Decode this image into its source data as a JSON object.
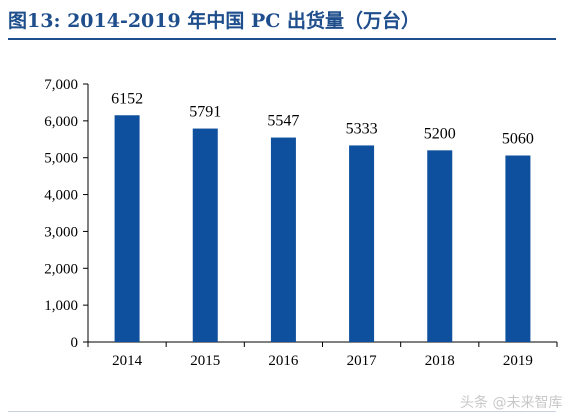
{
  "chart_data": {
    "type": "bar",
    "title": "图13: 2014-2019 年中国 PC 出货量（万台）",
    "categories": [
      "2014",
      "2015",
      "2016",
      "2017",
      "2018",
      "2019"
    ],
    "values": [
      6152,
      5791,
      5547,
      5333,
      5200,
      5060
    ],
    "data_labels": [
      "6152",
      "5791",
      "5547",
      "5333",
      "5200",
      "5060"
    ],
    "ylim": [
      0,
      7000
    ],
    "yticks": [
      0,
      1000,
      2000,
      3000,
      4000,
      5000,
      6000,
      7000
    ],
    "ytick_labels": [
      "0",
      "1,000",
      "2,000",
      "3,000",
      "4,000",
      "5,000",
      "6,000",
      "7,000"
    ],
    "xlabel": "",
    "ylabel": "",
    "grid": false,
    "legend": "none",
    "bar_color": "#0e4f9e"
  },
  "watermark": "头条 @未来智库"
}
